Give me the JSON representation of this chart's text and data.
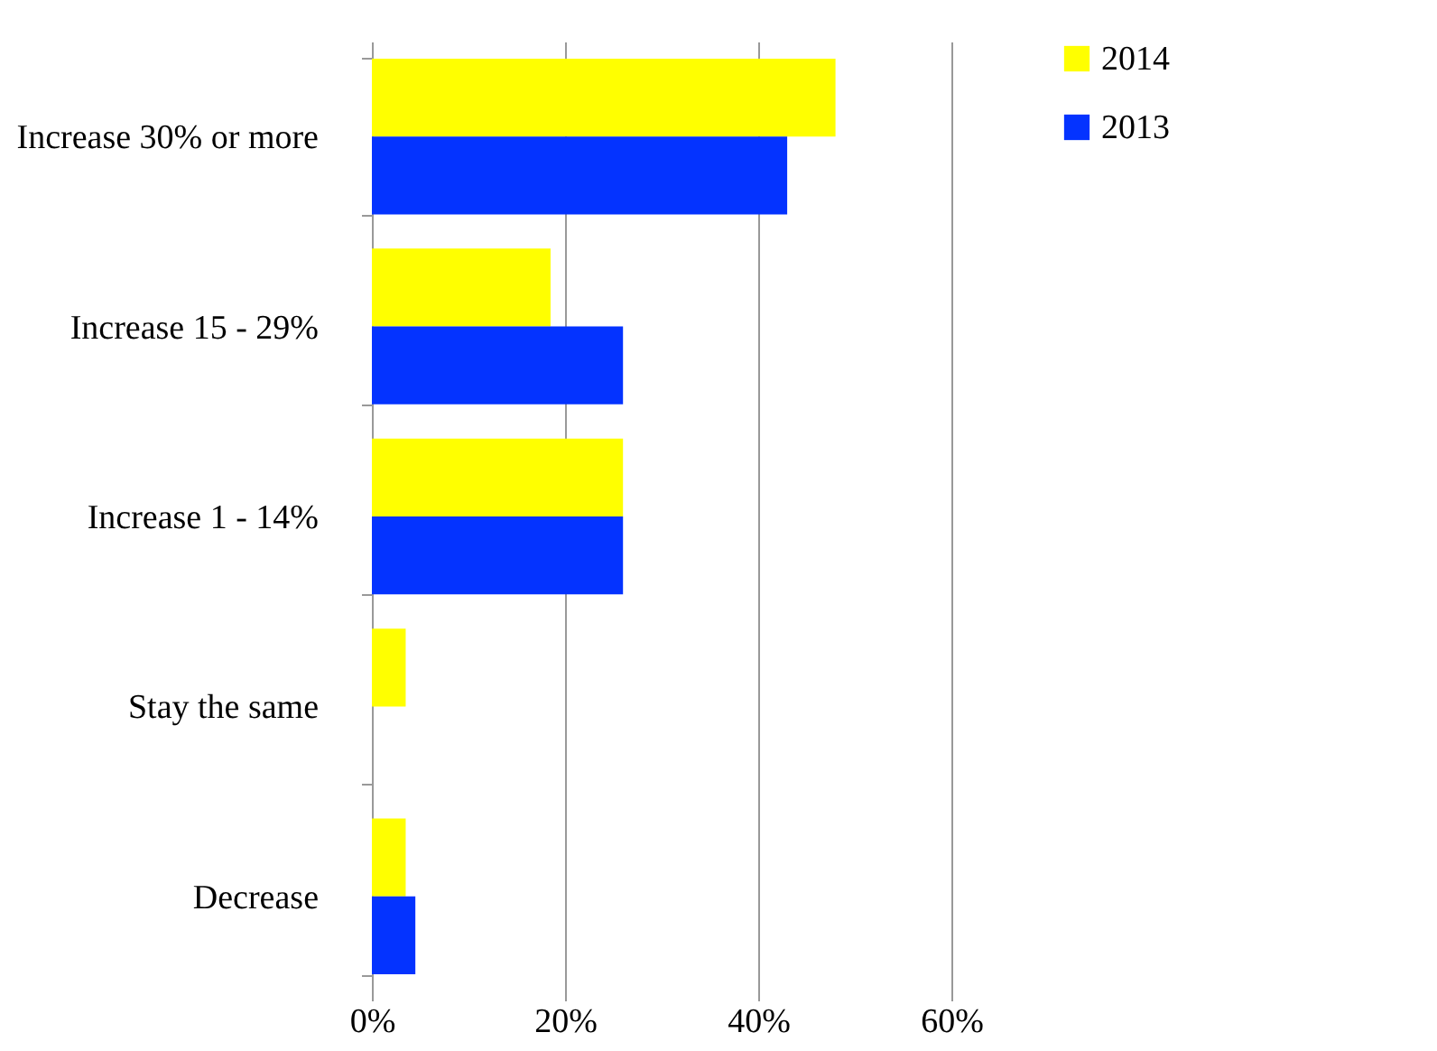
{
  "chart_data": {
    "type": "bar",
    "orientation": "horizontal",
    "categories": [
      "Increase 30% or more",
      "Increase 15 - 29%",
      "Increase 1 - 14%",
      "Stay the same",
      "Decrease"
    ],
    "series": [
      {
        "name": "2014",
        "color": "#ffff00",
        "values": [
          48,
          18.5,
          26,
          3.5,
          3.5
        ]
      },
      {
        "name": "2013",
        "color": "#0433ff",
        "values": [
          43,
          26,
          26,
          null,
          4.5
        ]
      }
    ],
    "xlim": [
      0,
      60
    ],
    "xticks": [
      {
        "value": 0,
        "label": "0%"
      },
      {
        "value": 20,
        "label": "20%"
      },
      {
        "value": 40,
        "label": "40%"
      },
      {
        "value": 60,
        "label": "60%"
      }
    ],
    "grid": "x",
    "legend": "right"
  }
}
